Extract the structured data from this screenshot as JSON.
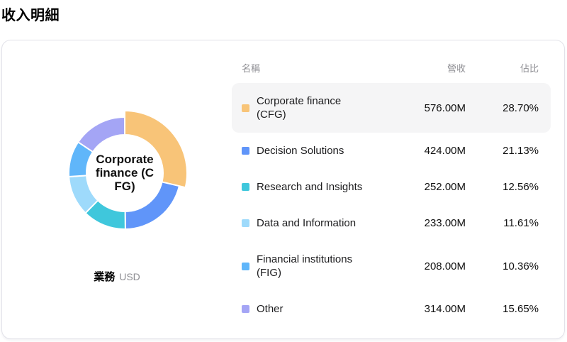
{
  "page": {
    "title": "收入明細"
  },
  "table": {
    "headers": [
      "名稱",
      "營收",
      "佔比"
    ]
  },
  "chart_data": {
    "type": "pie",
    "title": "收入明細",
    "legend_position": "right-table",
    "donut": true,
    "selected_index": 0,
    "center_label": "Corporate finance (CFG)",
    "center_label_lines": [
      "Corporate",
      "finance (C",
      "FG)"
    ],
    "footer": {
      "label": "業務",
      "unit": "USD"
    },
    "categories": [
      "Corporate finance (CFG)",
      "Decision Solutions",
      "Research and Insights",
      "Data and Information",
      "Financial institutions (FIG)",
      "Other"
    ],
    "values": [
      576,
      424,
      252,
      233,
      208,
      314
    ],
    "series": [
      {
        "name": "Corporate finance (CFG)",
        "name_lines": [
          "Corporate finance",
          "(CFG)"
        ],
        "value": 576,
        "revenue": "576.00M",
        "percent": "28.70%",
        "percent_value": 28.7,
        "color": "#f8c478"
      },
      {
        "name": "Decision Solutions",
        "name_lines": [
          "Decision Solutions"
        ],
        "value": 424,
        "revenue": "424.00M",
        "percent": "21.13%",
        "percent_value": 21.13,
        "color": "#6095f9"
      },
      {
        "name": "Research and Insights",
        "name_lines": [
          "Research and Insights"
        ],
        "value": 252,
        "revenue": "252.00M",
        "percent": "12.56%",
        "percent_value": 12.56,
        "color": "#3fc7dc"
      },
      {
        "name": "Data and Information",
        "name_lines": [
          "Data and Information"
        ],
        "value": 233,
        "revenue": "233.00M",
        "percent": "11.61%",
        "percent_value": 11.61,
        "color": "#9edafb"
      },
      {
        "name": "Financial institutions (FIG)",
        "name_lines": [
          "Financial institutions",
          "(FIG)"
        ],
        "value": 208,
        "revenue": "208.00M",
        "percent": "10.36%",
        "percent_value": 10.36,
        "color": "#60b6fa"
      },
      {
        "name": "Other",
        "name_lines": [
          "Other"
        ],
        "value": 314,
        "revenue": "314.00M",
        "percent": "15.65%",
        "percent_value": 15.65,
        "color": "#a4a5f5"
      }
    ]
  }
}
